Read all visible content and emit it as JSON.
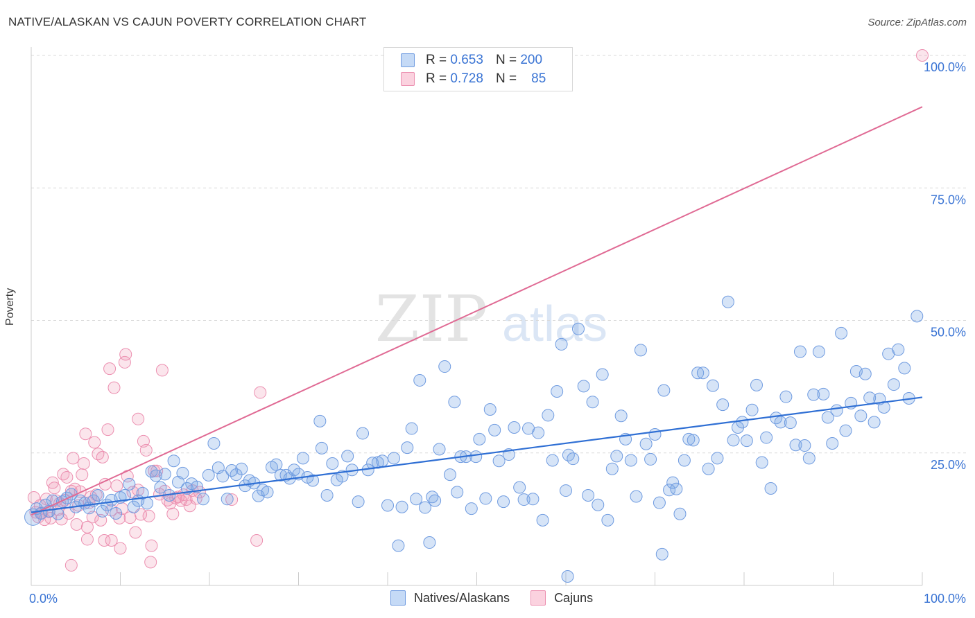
{
  "title": "NATIVE/ALASKAN VS CAJUN POVERTY CORRELATION CHART",
  "source": "Source: ZipAtlas.com",
  "watermark": {
    "zip": "ZIP",
    "atlas": "atlas"
  },
  "legend": {
    "rows": [
      {
        "r_label": "R =",
        "r_value": "0.653",
        "n_label": "N =",
        "n_value": "200",
        "color": "#8fb8ef"
      },
      {
        "r_label": "R =",
        "r_value": "0.728",
        "n_label": "N =",
        "n_value": "85",
        "color": "#f5a7c0"
      }
    ]
  },
  "bottom_legend": {
    "items": [
      "Natives/Alaskans",
      "Cajuns"
    ]
  },
  "colors": {
    "blue_fill": "rgba(120,165,230,0.30)",
    "blue_stroke": "#6f9be0",
    "blue_line": "#2f6fd4",
    "pink_fill": "rgba(240,150,180,0.25)",
    "pink_stroke": "#ec8fb0",
    "pink_line": "#e06a94",
    "axis_text": "#3a74d4"
  },
  "chart_data": {
    "type": "scatter",
    "title": "NATIVE/ALASKAN VS CAJUN POVERTY CORRELATION CHART",
    "xlabel": "",
    "ylabel": "Poverty",
    "xlim": [
      0,
      100
    ],
    "ylim": [
      0,
      100
    ],
    "x_tick_labels": [
      "0.0%",
      "100.0%"
    ],
    "y_tick_labels": [
      "25.0%",
      "50.0%",
      "75.0%",
      "100.0%"
    ],
    "y_ticks": [
      25,
      50,
      75,
      100
    ],
    "grid": "horizontal dashed",
    "series": [
      {
        "name": "Natives/Alaskans",
        "r": 0.653,
        "n": 200,
        "trend": {
          "x": [
            0,
            100
          ],
          "y": [
            13.8,
            35.5
          ]
        },
        "points": [
          [
            0.2,
            12.9
          ],
          [
            0.6,
            14.5
          ],
          [
            1.1,
            13.6
          ],
          [
            1.6,
            15.2
          ],
          [
            2.0,
            14.0
          ],
          [
            2.4,
            16.0
          ],
          [
            3.0,
            13.5
          ],
          [
            3.5,
            15.8
          ],
          [
            4.0,
            16.5
          ],
          [
            4.5,
            17.2
          ],
          [
            5.0,
            14.8
          ],
          [
            5.5,
            16.0
          ],
          [
            6.0,
            15.5
          ],
          [
            6.5,
            14.6
          ],
          [
            7.0,
            16.0
          ],
          [
            7.5,
            17.0
          ],
          [
            8.0,
            14.0
          ],
          [
            8.5,
            15.2
          ],
          [
            9.0,
            16.1
          ],
          [
            9.5,
            13.6
          ],
          [
            10.0,
            16.6
          ],
          [
            10.5,
            17.0
          ],
          [
            11.0,
            19.1
          ],
          [
            11.5,
            14.8
          ],
          [
            12.0,
            16.0
          ],
          [
            12.5,
            17.4
          ],
          [
            13.0,
            15.5
          ],
          [
            13.5,
            21.5
          ],
          [
            14.0,
            20.7
          ],
          [
            14.5,
            18.5
          ],
          [
            15.0,
            21.0
          ],
          [
            15.5,
            17.0
          ],
          [
            16.0,
            23.5
          ],
          [
            16.5,
            19.5
          ],
          [
            17.0,
            21.2
          ],
          [
            17.5,
            18.3
          ],
          [
            18.0,
            19.2
          ],
          [
            18.6,
            18.6
          ],
          [
            19.3,
            16.3
          ],
          [
            19.9,
            20.8
          ],
          [
            20.5,
            26.8
          ],
          [
            21.0,
            22.2
          ],
          [
            21.5,
            20.6
          ],
          [
            22.0,
            16.3
          ],
          [
            22.5,
            21.7
          ],
          [
            23.0,
            20.9
          ],
          [
            23.6,
            22.0
          ],
          [
            24.0,
            18.8
          ],
          [
            24.5,
            19.8
          ],
          [
            25.0,
            19.3
          ],
          [
            25.5,
            16.9
          ],
          [
            26.0,
            18.0
          ],
          [
            26.5,
            17.6
          ],
          [
            27.0,
            22.3
          ],
          [
            27.5,
            22.8
          ],
          [
            28.0,
            20.8
          ],
          [
            28.6,
            20.8
          ],
          [
            29.0,
            20.2
          ],
          [
            29.5,
            21.8
          ],
          [
            30.0,
            21.0
          ],
          [
            30.5,
            24.0
          ],
          [
            31.0,
            20.4
          ],
          [
            31.6,
            19.8
          ],
          [
            32.4,
            31.0
          ],
          [
            32.6,
            25.9
          ],
          [
            33.2,
            17.0
          ],
          [
            33.8,
            23.0
          ],
          [
            34.3,
            19.9
          ],
          [
            34.9,
            20.6
          ],
          [
            35.5,
            24.4
          ],
          [
            36.0,
            21.8
          ],
          [
            36.7,
            15.8
          ],
          [
            37.2,
            28.7
          ],
          [
            37.8,
            21.8
          ],
          [
            38.3,
            23.1
          ],
          [
            38.9,
            23.2
          ],
          [
            39.4,
            23.5
          ],
          [
            40.0,
            15.1
          ],
          [
            40.7,
            24.0
          ],
          [
            41.2,
            7.5
          ],
          [
            41.6,
            14.8
          ],
          [
            42.2,
            26.0
          ],
          [
            42.7,
            29.6
          ],
          [
            43.2,
            16.3
          ],
          [
            43.6,
            38.7
          ],
          [
            44.2,
            14.7
          ],
          [
            44.7,
            8.1
          ],
          [
            45.0,
            16.7
          ],
          [
            45.3,
            16.0
          ],
          [
            45.8,
            25.7
          ],
          [
            46.4,
            41.3
          ],
          [
            47.0,
            20.9
          ],
          [
            47.5,
            34.6
          ],
          [
            47.8,
            17.6
          ],
          [
            48.2,
            24.3
          ],
          [
            48.8,
            24.3
          ],
          [
            49.4,
            14.5
          ],
          [
            49.9,
            24.3
          ],
          [
            50.3,
            27.6
          ],
          [
            51.0,
            16.4
          ],
          [
            51.5,
            33.2
          ],
          [
            52.0,
            29.3
          ],
          [
            52.5,
            23.5
          ],
          [
            53.0,
            15.8
          ],
          [
            53.6,
            24.7
          ],
          [
            54.2,
            29.8
          ],
          [
            54.8,
            18.5
          ],
          [
            55.3,
            16.2
          ],
          [
            55.8,
            29.6
          ],
          [
            56.3,
            16.3
          ],
          [
            56.9,
            28.8
          ],
          [
            57.4,
            12.3
          ],
          [
            58.0,
            32.1
          ],
          [
            58.5,
            23.6
          ],
          [
            59.0,
            36.6
          ],
          [
            59.5,
            45.5
          ],
          [
            60.0,
            17.9
          ],
          [
            60.3,
            24.6
          ],
          [
            60.8,
            23.9
          ],
          [
            61.4,
            48.4
          ],
          [
            62.0,
            37.6
          ],
          [
            62.5,
            17.0
          ],
          [
            63.0,
            34.6
          ],
          [
            63.6,
            15.2
          ],
          [
            64.1,
            39.8
          ],
          [
            64.7,
            12.3
          ],
          [
            65.2,
            22.0
          ],
          [
            65.7,
            24.4
          ],
          [
            66.2,
            32.0
          ],
          [
            66.7,
            27.6
          ],
          [
            67.3,
            23.6
          ],
          [
            67.9,
            16.8
          ],
          [
            68.4,
            44.4
          ],
          [
            69.0,
            26.7
          ],
          [
            69.5,
            23.8
          ],
          [
            70.0,
            28.5
          ],
          [
            70.5,
            15.6
          ],
          [
            71.0,
            36.8
          ],
          [
            71.6,
            18.0
          ],
          [
            72.0,
            19.4
          ],
          [
            72.4,
            18.2
          ],
          [
            72.8,
            13.5
          ],
          [
            73.3,
            23.6
          ],
          [
            73.8,
            27.6
          ],
          [
            74.3,
            27.4
          ],
          [
            74.8,
            40.1
          ],
          [
            75.4,
            40.1
          ],
          [
            76.0,
            22.0
          ],
          [
            76.5,
            37.7
          ],
          [
            77.0,
            24.0
          ],
          [
            77.6,
            34.1
          ],
          [
            78.2,
            53.5
          ],
          [
            78.8,
            27.4
          ],
          [
            79.3,
            29.8
          ],
          [
            79.8,
            30.8
          ],
          [
            80.3,
            27.3
          ],
          [
            80.9,
            33.1
          ],
          [
            81.4,
            37.8
          ],
          [
            82.0,
            23.2
          ],
          [
            82.5,
            27.9
          ],
          [
            83.0,
            18.3
          ],
          [
            83.6,
            31.6
          ],
          [
            84.1,
            30.8
          ],
          [
            84.7,
            35.6
          ],
          [
            85.2,
            30.7
          ],
          [
            85.8,
            26.5
          ],
          [
            86.3,
            44.1
          ],
          [
            86.8,
            26.4
          ],
          [
            87.3,
            24.0
          ],
          [
            87.8,
            36.0
          ],
          [
            88.4,
            44.1
          ],
          [
            88.9,
            36.1
          ],
          [
            89.4,
            31.7
          ],
          [
            89.9,
            26.8
          ],
          [
            90.4,
            33.0
          ],
          [
            90.9,
            47.6
          ],
          [
            91.4,
            29.2
          ],
          [
            92.0,
            34.4
          ],
          [
            92.6,
            40.4
          ],
          [
            93.1,
            32.0
          ],
          [
            93.6,
            39.9
          ],
          [
            94.1,
            35.4
          ],
          [
            94.6,
            30.8
          ],
          [
            95.2,
            35.2
          ],
          [
            95.7,
            33.6
          ],
          [
            96.2,
            43.7
          ],
          [
            96.8,
            37.9
          ],
          [
            97.3,
            44.5
          ],
          [
            98.0,
            41.0
          ],
          [
            98.5,
            35.3
          ],
          [
            99.4,
            50.8
          ],
          [
            60.2,
            1.7
          ],
          [
            70.8,
            5.9
          ]
        ]
      },
      {
        "name": "Cajuns",
        "r": 0.728,
        "n": 85,
        "trend": {
          "x": [
            0,
            100
          ],
          "y": [
            13.3,
            90.3
          ]
        },
        "points": [
          [
            0.3,
            16.6
          ],
          [
            0.5,
            13.8
          ],
          [
            0.8,
            12.9
          ],
          [
            1.0,
            15.1
          ],
          [
            1.2,
            13.7
          ],
          [
            1.5,
            12.4
          ],
          [
            1.7,
            16.3
          ],
          [
            2.0,
            13.9
          ],
          [
            2.2,
            12.7
          ],
          [
            2.4,
            19.4
          ],
          [
            2.6,
            18.4
          ],
          [
            2.8,
            16.0
          ],
          [
            3.0,
            14.3
          ],
          [
            3.2,
            15.5
          ],
          [
            3.4,
            12.5
          ],
          [
            3.6,
            21.0
          ],
          [
            3.8,
            16.1
          ],
          [
            4.0,
            20.4
          ],
          [
            4.2,
            13.6
          ],
          [
            4.5,
            17.8
          ],
          [
            4.7,
            24.0
          ],
          [
            4.9,
            18.2
          ],
          [
            5.1,
            11.5
          ],
          [
            5.3,
            15.1
          ],
          [
            5.5,
            17.7
          ],
          [
            5.7,
            20.9
          ],
          [
            5.9,
            23.0
          ],
          [
            6.1,
            28.6
          ],
          [
            6.3,
            11.0
          ],
          [
            6.5,
            15.6
          ],
          [
            6.7,
            16.7
          ],
          [
            6.9,
            12.9
          ],
          [
            7.1,
            27.0
          ],
          [
            7.3,
            17.1
          ],
          [
            7.5,
            24.8
          ],
          [
            7.8,
            12.3
          ],
          [
            8.0,
            24.2
          ],
          [
            8.3,
            19.1
          ],
          [
            8.6,
            29.4
          ],
          [
            8.8,
            40.9
          ],
          [
            9.0,
            14.2
          ],
          [
            9.3,
            37.3
          ],
          [
            9.6,
            18.8
          ],
          [
            9.9,
            12.7
          ],
          [
            10.2,
            14.5
          ],
          [
            10.5,
            42.1
          ],
          [
            10.8,
            20.6
          ],
          [
            11.1,
            12.8
          ],
          [
            11.4,
            17.6
          ],
          [
            11.7,
            10.0
          ],
          [
            12.0,
            31.4
          ],
          [
            12.3,
            13.4
          ],
          [
            12.6,
            27.2
          ],
          [
            12.9,
            25.5
          ],
          [
            13.2,
            13.1
          ],
          [
            13.5,
            7.5
          ],
          [
            13.8,
            21.6
          ],
          [
            14.1,
            21.6
          ],
          [
            14.4,
            17.2
          ],
          [
            14.7,
            40.6
          ],
          [
            15.0,
            17.8
          ],
          [
            15.3,
            16.1
          ],
          [
            15.6,
            15.5
          ],
          [
            15.9,
            13.5
          ],
          [
            16.2,
            16.5
          ],
          [
            16.5,
            16.7
          ],
          [
            16.8,
            16.0
          ],
          [
            17.1,
            17.1
          ],
          [
            17.4,
            16.2
          ],
          [
            17.8,
            15.0
          ],
          [
            18.1,
            17.9
          ],
          [
            18.5,
            16.4
          ],
          [
            18.9,
            17.6
          ],
          [
            22.5,
            16.2
          ],
          [
            25.3,
            8.5
          ],
          [
            25.7,
            36.4
          ],
          [
            10.6,
            43.6
          ],
          [
            8.2,
            8.5
          ],
          [
            13.4,
            4.4
          ],
          [
            4.5,
            3.8
          ],
          [
            6.3,
            8.7
          ],
          [
            9.0,
            8.5
          ],
          [
            10.0,
            7.0
          ],
          [
            12.0,
            18.0
          ],
          [
            100.0,
            100.0
          ]
        ]
      }
    ]
  }
}
